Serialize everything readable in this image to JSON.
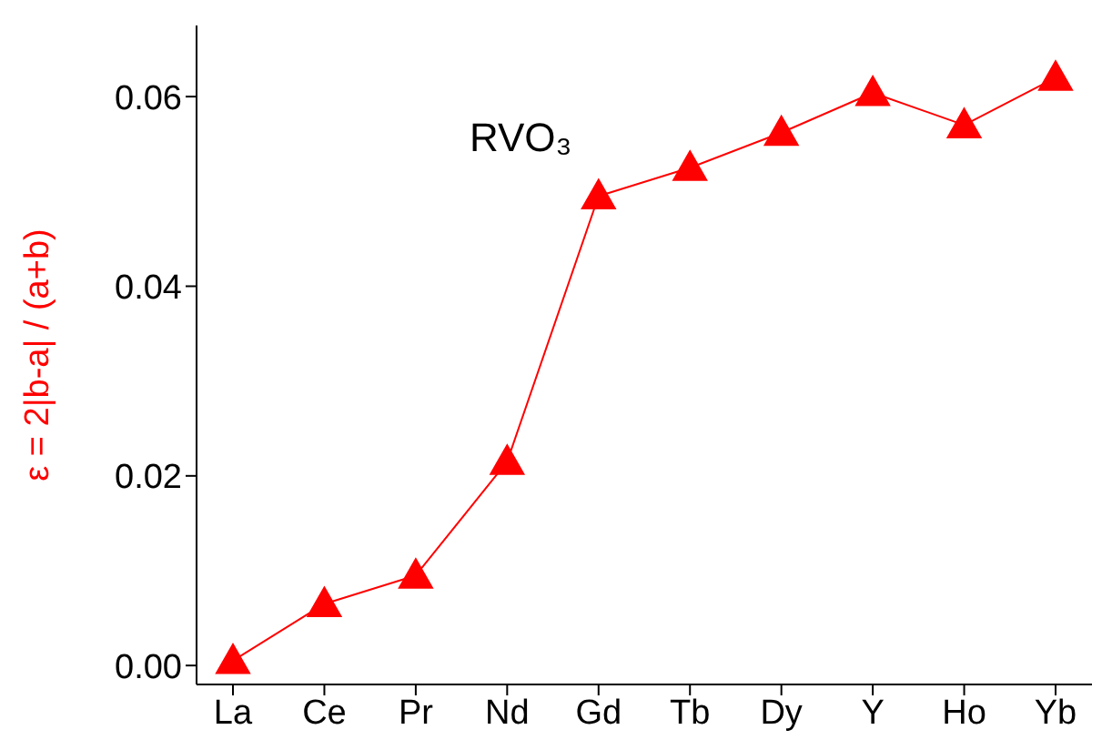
{
  "chart_data": {
    "type": "line",
    "ylabel": "ε = 2|b-a| / (a+b)",
    "annotations": [
      "RVO₃"
    ],
    "categories": [
      "La",
      "Ce",
      "Pr",
      "Nd",
      "Gd",
      "Tb",
      "Dy",
      "Y",
      "Ho",
      "Yb"
    ],
    "series": [
      {
        "color": "#ff0000",
        "values": [
          0.0005,
          0.0065,
          0.0095,
          0.0215,
          0.0495,
          0.0525,
          0.0562,
          0.0604,
          0.057,
          0.062
        ]
      }
    ],
    "ylim": [
      -0.002,
      0.0675
    ],
    "yticks": [
      {
        "value": 0,
        "label": "0.00"
      },
      {
        "value": 0.02,
        "label": "0.02"
      },
      {
        "value": 0.04,
        "label": "0.04"
      },
      {
        "value": 0.06,
        "label": "0.06"
      }
    ],
    "grid": false,
    "marker": "triangle",
    "line_style": "solid"
  }
}
